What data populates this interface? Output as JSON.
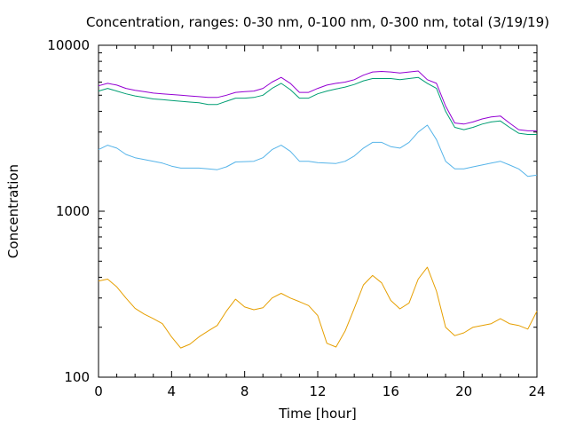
{
  "chart_data": {
    "type": "line",
    "title": "Concentration, ranges: 0-30 nm, 0-100 nm, 0-300 nm, total (3/19/19)",
    "xlabel": "Time [hour]",
    "ylabel": "Concentration",
    "xlim": [
      0,
      24
    ],
    "ylim": [
      100,
      10000
    ],
    "yscale": "log",
    "grid": false,
    "legend": "none",
    "x_ticks": [
      0,
      4,
      8,
      12,
      16,
      20,
      24
    ],
    "x_tick_labels": [
      "0",
      "4",
      "8",
      "12",
      "16",
      "20",
      "24"
    ],
    "y_ticks": [
      100,
      1000,
      10000
    ],
    "y_tick_labels": [
      "100",
      "1000",
      "10000"
    ],
    "series": [
      {
        "color": "#e69f00",
        "x": [
          0,
          0.5,
          1,
          1.5,
          2,
          2.5,
          3,
          3.5,
          4,
          4.5,
          5,
          5.5,
          6,
          6.5,
          7,
          7.5,
          8,
          8.5,
          9,
          9.5,
          10,
          10.5,
          11,
          11.5,
          12,
          12.5,
          13,
          13.5,
          14,
          14.5,
          15,
          15.5,
          16,
          16.5,
          17,
          17.5,
          18,
          18.5,
          19,
          19.5,
          20,
          20.5,
          21,
          21.5,
          22,
          22.5,
          23,
          23.5,
          24
        ],
        "y": [
          380,
          390,
          350,
          300,
          260,
          240,
          225,
          210,
          175,
          150,
          158,
          175,
          190,
          205,
          250,
          295,
          265,
          255,
          262,
          300,
          320,
          300,
          285,
          270,
          235,
          160,
          152,
          190,
          260,
          360,
          410,
          370,
          290,
          258,
          280,
          390,
          460,
          330,
          200,
          178,
          185,
          200,
          205,
          210,
          225,
          210,
          205,
          195,
          250
        ]
      },
      {
        "color": "#56b4e9",
        "x": [
          0,
          0.5,
          1,
          1.5,
          2,
          2.5,
          3,
          3.5,
          4,
          4.5,
          5,
          5.5,
          6,
          6.5,
          7,
          7.5,
          8,
          8.5,
          9,
          9.5,
          10,
          10.5,
          11,
          11.5,
          12,
          12.5,
          13,
          13.5,
          14,
          14.5,
          15,
          15.5,
          16,
          16.5,
          17,
          17.5,
          18,
          18.5,
          19,
          19.5,
          20,
          20.5,
          21,
          21.5,
          22,
          22.5,
          23,
          23.5,
          24
        ],
        "y": [
          2350,
          2500,
          2400,
          2200,
          2100,
          2050,
          2000,
          1950,
          1870,
          1820,
          1820,
          1820,
          1800,
          1780,
          1850,
          1980,
          1990,
          2000,
          2100,
          2350,
          2500,
          2300,
          2000,
          2000,
          1960,
          1950,
          1940,
          2000,
          2150,
          2400,
          2600,
          2600,
          2450,
          2400,
          2600,
          3000,
          3300,
          2700,
          2000,
          1800,
          1800,
          1850,
          1900,
          1950,
          2000,
          1900,
          1800,
          1620,
          1650
        ]
      },
      {
        "color": "#009e73",
        "x": [
          0,
          0.5,
          1,
          1.5,
          2,
          2.5,
          3,
          3.5,
          4,
          4.5,
          5,
          5.5,
          6,
          6.5,
          7,
          7.5,
          8,
          8.5,
          9,
          9.5,
          10,
          10.5,
          11,
          11.5,
          12,
          12.5,
          13,
          13.5,
          14,
          14.5,
          15,
          15.5,
          16,
          16.5,
          17,
          17.5,
          18,
          18.5,
          19,
          19.5,
          20,
          20.5,
          21,
          21.5,
          22,
          22.5,
          23,
          23.5,
          24
        ],
        "y": [
          5300,
          5500,
          5300,
          5100,
          4950,
          4850,
          4750,
          4700,
          4650,
          4600,
          4550,
          4500,
          4400,
          4400,
          4600,
          4800,
          4800,
          4850,
          5000,
          5500,
          5900,
          5400,
          4800,
          4800,
          5100,
          5300,
          5450,
          5600,
          5800,
          6100,
          6300,
          6300,
          6300,
          6200,
          6300,
          6400,
          5900,
          5500,
          4000,
          3200,
          3100,
          3200,
          3350,
          3450,
          3500,
          3200,
          2950,
          2900,
          2900
        ]
      },
      {
        "color": "#9400d3",
        "x": [
          0,
          0.5,
          1,
          1.5,
          2,
          2.5,
          3,
          3.5,
          4,
          4.5,
          5,
          5.5,
          6,
          6.5,
          7,
          7.5,
          8,
          8.5,
          9,
          9.5,
          10,
          10.5,
          11,
          11.5,
          12,
          12.5,
          13,
          13.5,
          14,
          14.5,
          15,
          15.5,
          16,
          16.5,
          17,
          17.5,
          18,
          18.5,
          19,
          19.5,
          20,
          20.5,
          21,
          21.5,
          22,
          22.5,
          23,
          23.5,
          24
        ],
        "y": [
          5700,
          5900,
          5750,
          5500,
          5350,
          5250,
          5150,
          5100,
          5050,
          5000,
          4950,
          4900,
          4850,
          4850,
          5000,
          5200,
          5250,
          5300,
          5500,
          6000,
          6400,
          5900,
          5200,
          5200,
          5500,
          5750,
          5900,
          6000,
          6200,
          6600,
          6900,
          6950,
          6900,
          6800,
          6900,
          7000,
          6200,
          5900,
          4300,
          3400,
          3350,
          3450,
          3600,
          3700,
          3750,
          3400,
          3100,
          3050,
          3050
        ]
      }
    ]
  }
}
